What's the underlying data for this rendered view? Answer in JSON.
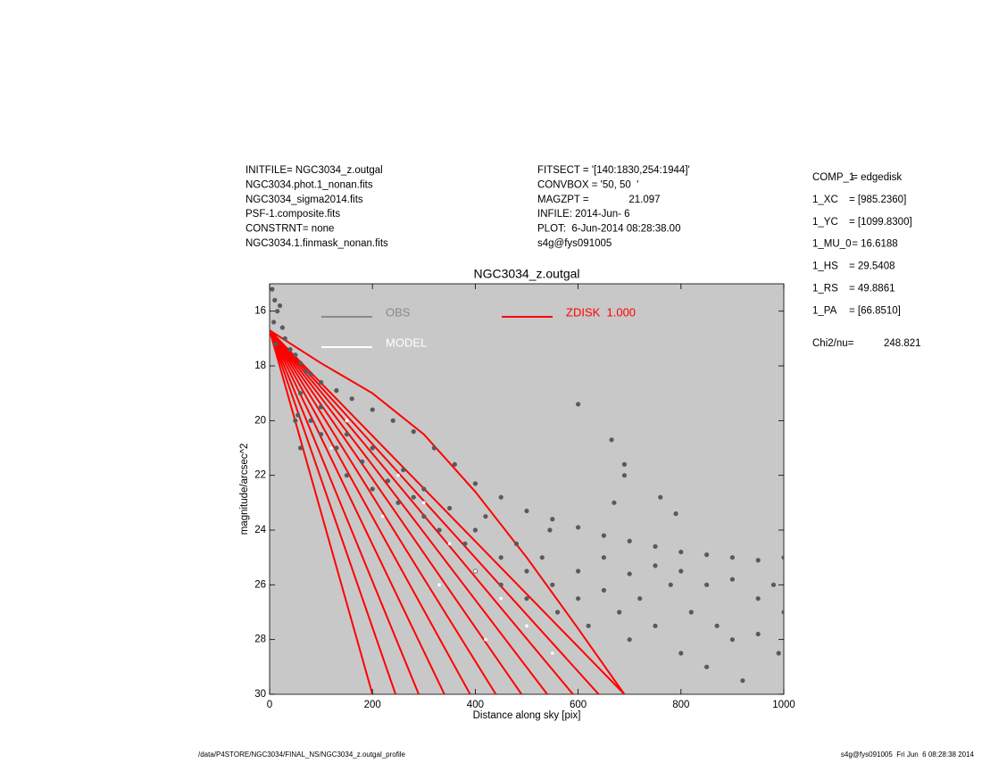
{
  "header": {
    "left": [
      "INITFILE= NGC3034_z.outgal",
      "NGC3034.phot.1_nonan.fits",
      "NGC3034_sigma2014.fits",
      "PSF-1.composite.fits",
      "CONSTRNT= none",
      "NGC3034.1.finmask_nonan.fits"
    ],
    "middle": [
      "FITSECT = '[140:1830,254:1944]'",
      "CONVBOX = '50, 50  '",
      "MAGZPT =              21.097",
      "INFILE: 2014-Jun- 6",
      "PLOT:  6-Jun-2014 08:28:38.00",
      "s4g@fys091005"
    ],
    "params": [
      {
        "name": "COMP_1",
        "value": " = edgedisk"
      },
      {
        "name": "1_XC",
        "value": "= [985.2360]"
      },
      {
        "name": "1_YC",
        "value": "= [1099.8300]"
      },
      {
        "name": "1_MU_0",
        "value": " = 16.6188"
      },
      {
        "name": "1_HS",
        "value": "= 29.5408"
      },
      {
        "name": "1_RS",
        "value": "= 49.8861"
      },
      {
        "name": "1_PA",
        "value": "= [66.8510]"
      }
    ],
    "chi2_label": "Chi2/nu=",
    "chi2_value": "248.821"
  },
  "footer": {
    "left": "/data/P4STORE/NGC3034/FINAL_NS/NGC3034_z.outgal_profile",
    "right": "s4g@fys091005  Fri Jun  6 08:28:38 2014"
  },
  "chart_data": {
    "type": "scatter",
    "title": "NGC3034_z.outgal",
    "x_label": "Distance along sky [pix]",
    "y_label": "magnitude/arcsec^2",
    "xlim": [
      0,
      1000
    ],
    "ylim": [
      30,
      15
    ],
    "xticks": [
      0,
      200,
      400,
      600,
      800,
      1000
    ],
    "yticks": [
      16,
      18,
      20,
      22,
      24,
      26,
      28,
      30
    ],
    "background": "#c8c8c8",
    "legend": "upper left",
    "series": [
      {
        "name": "OBS",
        "color": "#5a5a5a",
        "legend_color": "#8a8a8a",
        "mode": "points",
        "x": [
          5,
          10,
          15,
          8,
          20,
          25,
          30,
          12,
          40,
          50,
          60,
          70,
          80,
          100,
          130,
          160,
          200,
          240,
          280,
          320,
          360,
          400,
          450,
          500,
          550,
          600,
          650,
          700,
          750,
          800,
          850,
          900,
          950,
          1000,
          60,
          80,
          100,
          100,
          130,
          150,
          150,
          180,
          200,
          200,
          230,
          250,
          260,
          280,
          300,
          300,
          330,
          350,
          380,
          400,
          400,
          420,
          450,
          450,
          480,
          500,
          500,
          530,
          550,
          560,
          600,
          600,
          620,
          650,
          650,
          680,
          700,
          700,
          720,
          750,
          750,
          780,
          800,
          800,
          820,
          850,
          850,
          870,
          900,
          900,
          920,
          950,
          950,
          980,
          1000,
          990,
          600,
          665,
          690,
          690,
          670,
          760,
          790,
          545,
          50,
          60,
          55
        ],
        "values": [
          15.2,
          15.6,
          16.0,
          16.4,
          15.8,
          16.6,
          17.0,
          17.2,
          17.4,
          17.6,
          17.9,
          18.2,
          18.3,
          18.6,
          18.9,
          19.2,
          19.6,
          20.0,
          20.4,
          21.0,
          21.6,
          22.3,
          22.8,
          23.3,
          23.6,
          23.9,
          24.2,
          24.4,
          24.6,
          24.8,
          24.9,
          25.0,
          25.1,
          25.0,
          19,
          20,
          20.5,
          19.5,
          21,
          20.5,
          22,
          21.5,
          22.5,
          21,
          22.2,
          23,
          21.8,
          22.8,
          23.5,
          22.5,
          24,
          23.2,
          24.5,
          25.5,
          24,
          23.5,
          25,
          26,
          24.5,
          25.5,
          26.5,
          25,
          26,
          27,
          25.5,
          26.5,
          27.5,
          25,
          26.2,
          27,
          28,
          25.6,
          26.5,
          25.3,
          27.5,
          26,
          28.5,
          25.5,
          27,
          26,
          29,
          27.5,
          25.8,
          28,
          29.5,
          26.5,
          27.8,
          26,
          27,
          28.5,
          19.4,
          20.7,
          21.6,
          22,
          23,
          22.8,
          23.4,
          24,
          20,
          21,
          19.8
        ]
      },
      {
        "name": "MODEL",
        "color": "#ffffff",
        "mode": "points",
        "x": [
          150,
          250,
          300,
          350,
          400,
          450,
          500,
          550,
          120,
          220,
          330,
          420
        ],
        "values": [
          20,
          22,
          23,
          24.5,
          25.5,
          26.5,
          27.5,
          28.5,
          21,
          23.5,
          26,
          28
        ]
      },
      {
        "name": "ZDISK  1.000",
        "color": "#ff0000",
        "mode": "line",
        "x": [
          0,
          100,
          200,
          300,
          400,
          500,
          600,
          690,
          0,
          640,
          0,
          590,
          0,
          540,
          0,
          490,
          0,
          440,
          0,
          390,
          0,
          340,
          0,
          290,
          0,
          245,
          0,
          200
        ],
        "values": [
          16.7,
          17.9,
          19,
          20.5,
          22.6,
          25,
          27.6,
          30,
          16.7,
          30,
          16.7,
          30,
          16.7,
          30,
          16.7,
          30,
          16.7,
          30,
          16.7,
          30,
          16.7,
          30,
          16.7,
          30,
          16.7,
          30,
          16.7,
          30
        ]
      }
    ]
  }
}
